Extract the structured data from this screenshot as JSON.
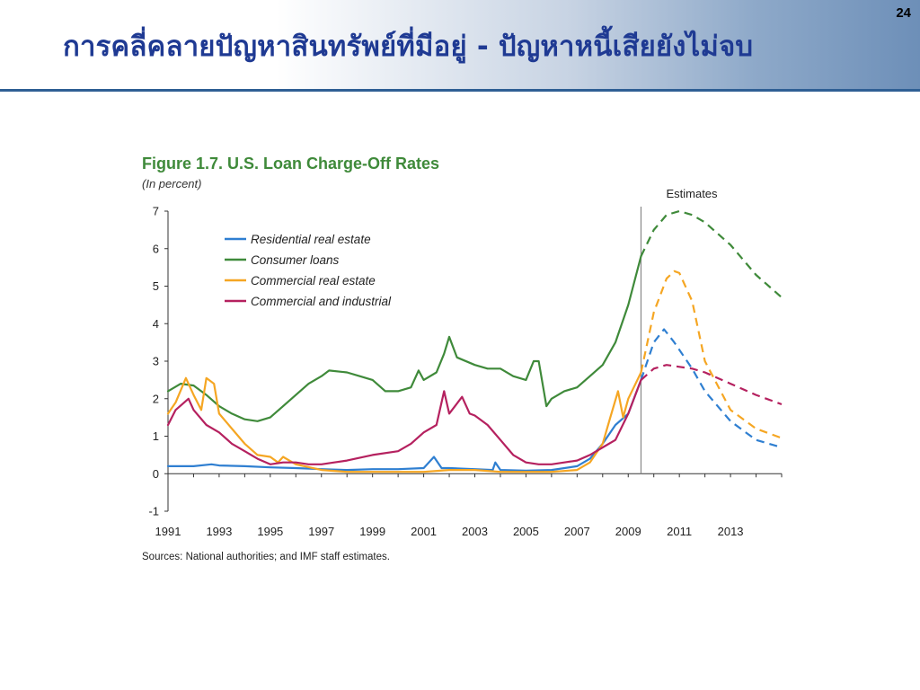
{
  "slide": {
    "title": "การคลี่คลายปัญหาสินทรัพย์ที่มีอยู่ - ปัญหาหนี้เสียยังไม่จบ",
    "page_number": "24"
  },
  "figure": {
    "title": "Figure 1.7. U.S. Loan Charge-Off Rates",
    "subtitle": "(In percent)",
    "source": "Sources: National authorities; and IMF staff estimates.",
    "estimates_label": "Estimates"
  },
  "chart_data": {
    "type": "line",
    "title": "Figure 1.7. U.S. Loan Charge-Off Rates",
    "ylabel": "(In percent)",
    "xlim": [
      1991,
      2015
    ],
    "ylim": [
      -1,
      7
    ],
    "y_ticks": [
      "-1",
      "0",
      "1",
      "2",
      "3",
      "4",
      "5",
      "6",
      "7"
    ],
    "x_ticks": [
      "1991",
      "1993",
      "1995",
      "1997",
      "1999",
      "2001",
      "2003",
      "2005",
      "2007",
      "2009",
      "2011",
      "2013"
    ],
    "estimates_start": 2009.5,
    "legend_position": "top-left",
    "grid": false,
    "series": [
      {
        "name": "Residential real estate",
        "color": "#2f7fd1",
        "actual": [
          [
            1991,
            0.2
          ],
          [
            1992,
            0.2
          ],
          [
            1992.7,
            0.25
          ],
          [
            1993,
            0.22
          ],
          [
            1994,
            0.2
          ],
          [
            1995,
            0.17
          ],
          [
            1996,
            0.15
          ],
          [
            1997,
            0.12
          ],
          [
            1998,
            0.1
          ],
          [
            1999,
            0.12
          ],
          [
            2000,
            0.12
          ],
          [
            2001,
            0.15
          ],
          [
            2001.4,
            0.45
          ],
          [
            2001.7,
            0.15
          ],
          [
            2002,
            0.15
          ],
          [
            2003,
            0.12
          ],
          [
            2003.7,
            0.1
          ],
          [
            2003.8,
            0.3
          ],
          [
            2004,
            0.1
          ],
          [
            2005,
            0.08
          ],
          [
            2006,
            0.1
          ],
          [
            2007,
            0.2
          ],
          [
            2007.5,
            0.4
          ],
          [
            2008,
            0.8
          ],
          [
            2008.5,
            1.3
          ],
          [
            2009,
            1.6
          ],
          [
            2009.5,
            2.5
          ]
        ],
        "estimate": [
          [
            2009.5,
            2.5
          ],
          [
            2010,
            3.5
          ],
          [
            2010.4,
            3.85
          ],
          [
            2010.8,
            3.5
          ],
          [
            2011.5,
            2.8
          ],
          [
            2012,
            2.2
          ],
          [
            2013,
            1.4
          ],
          [
            2014,
            0.9
          ],
          [
            2015,
            0.7
          ]
        ]
      },
      {
        "name": "Consumer loans",
        "color": "#3f8a3a",
        "actual": [
          [
            1991,
            2.2
          ],
          [
            1991.5,
            2.4
          ],
          [
            1992,
            2.35
          ],
          [
            1992.5,
            2.1
          ],
          [
            1993,
            1.8
          ],
          [
            1993.5,
            1.6
          ],
          [
            1994,
            1.45
          ],
          [
            1994.5,
            1.4
          ],
          [
            1995,
            1.5
          ],
          [
            1995.5,
            1.8
          ],
          [
            1996,
            2.1
          ],
          [
            1996.5,
            2.4
          ],
          [
            1997,
            2.6
          ],
          [
            1997.3,
            2.75
          ],
          [
            1998,
            2.7
          ],
          [
            1998.5,
            2.6
          ],
          [
            1999,
            2.5
          ],
          [
            1999.5,
            2.2
          ],
          [
            2000,
            2.2
          ],
          [
            2000.5,
            2.3
          ],
          [
            2000.8,
            2.75
          ],
          [
            2001,
            2.5
          ],
          [
            2001.5,
            2.7
          ],
          [
            2001.8,
            3.2
          ],
          [
            2002,
            3.65
          ],
          [
            2002.3,
            3.1
          ],
          [
            2003,
            2.9
          ],
          [
            2003.5,
            2.8
          ],
          [
            2004,
            2.8
          ],
          [
            2004.5,
            2.6
          ],
          [
            2005,
            2.5
          ],
          [
            2005.3,
            3.0
          ],
          [
            2005.5,
            3.0
          ],
          [
            2005.8,
            1.8
          ],
          [
            2006,
            2.0
          ],
          [
            2006.5,
            2.2
          ],
          [
            2007,
            2.3
          ],
          [
            2007.5,
            2.6
          ],
          [
            2008,
            2.9
          ],
          [
            2008.5,
            3.5
          ],
          [
            2009,
            4.5
          ],
          [
            2009.5,
            5.8
          ]
        ],
        "estimate": [
          [
            2009.5,
            5.8
          ],
          [
            2010,
            6.5
          ],
          [
            2010.5,
            6.9
          ],
          [
            2011,
            7.0
          ],
          [
            2011.5,
            6.9
          ],
          [
            2012,
            6.7
          ],
          [
            2013,
            6.1
          ],
          [
            2014,
            5.3
          ],
          [
            2015,
            4.7
          ]
        ]
      },
      {
        "name": "Commercial real estate",
        "color": "#f5a623",
        "actual": [
          [
            1991,
            1.6
          ],
          [
            1991.3,
            1.9
          ],
          [
            1991.7,
            2.55
          ],
          [
            1992,
            2.1
          ],
          [
            1992.3,
            1.7
          ],
          [
            1992.5,
            2.55
          ],
          [
            1992.8,
            2.4
          ],
          [
            1993,
            1.6
          ],
          [
            1993.5,
            1.2
          ],
          [
            1994,
            0.8
          ],
          [
            1994.5,
            0.5
          ],
          [
            1995,
            0.45
          ],
          [
            1995.3,
            0.3
          ],
          [
            1995.5,
            0.45
          ],
          [
            1996,
            0.25
          ],
          [
            1997,
            0.1
          ],
          [
            1998,
            0.05
          ],
          [
            1999,
            0.05
          ],
          [
            2000,
            0.05
          ],
          [
            2001,
            0.05
          ],
          [
            2002,
            0.1
          ],
          [
            2003,
            0.1
          ],
          [
            2004,
            0.05
          ],
          [
            2005,
            0.05
          ],
          [
            2006,
            0.05
          ],
          [
            2007,
            0.1
          ],
          [
            2007.5,
            0.3
          ],
          [
            2008,
            0.8
          ],
          [
            2008.3,
            1.5
          ],
          [
            2008.6,
            2.2
          ],
          [
            2008.8,
            1.5
          ],
          [
            2009,
            2.0
          ],
          [
            2009.5,
            2.7
          ]
        ],
        "estimate": [
          [
            2009.5,
            2.7
          ],
          [
            2010,
            4.3
          ],
          [
            2010.5,
            5.2
          ],
          [
            2010.8,
            5.4
          ],
          [
            2011,
            5.35
          ],
          [
            2011.5,
            4.6
          ],
          [
            2012,
            3.0
          ],
          [
            2013,
            1.7
          ],
          [
            2014,
            1.2
          ],
          [
            2015,
            0.95
          ]
        ]
      },
      {
        "name": "Commercial and industrial",
        "color": "#b5215f",
        "actual": [
          [
            1991,
            1.3
          ],
          [
            1991.3,
            1.7
          ],
          [
            1991.8,
            2.0
          ],
          [
            1992,
            1.7
          ],
          [
            1992.5,
            1.3
          ],
          [
            1993,
            1.1
          ],
          [
            1993.5,
            0.8
          ],
          [
            1994,
            0.6
          ],
          [
            1994.5,
            0.4
          ],
          [
            1995,
            0.25
          ],
          [
            1995.5,
            0.3
          ],
          [
            1996,
            0.3
          ],
          [
            1996.5,
            0.25
          ],
          [
            1997,
            0.25
          ],
          [
            1997.5,
            0.3
          ],
          [
            1998,
            0.35
          ],
          [
            1999,
            0.5
          ],
          [
            2000,
            0.6
          ],
          [
            2000.5,
            0.8
          ],
          [
            2001,
            1.1
          ],
          [
            2001.5,
            1.3
          ],
          [
            2001.8,
            2.2
          ],
          [
            2002,
            1.6
          ],
          [
            2002.5,
            2.05
          ],
          [
            2002.8,
            1.6
          ],
          [
            2003,
            1.55
          ],
          [
            2003.5,
            1.3
          ],
          [
            2004,
            0.9
          ],
          [
            2004.5,
            0.5
          ],
          [
            2005,
            0.3
          ],
          [
            2005.5,
            0.25
          ],
          [
            2006,
            0.25
          ],
          [
            2006.5,
            0.3
          ],
          [
            2007,
            0.35
          ],
          [
            2007.5,
            0.5
          ],
          [
            2008,
            0.7
          ],
          [
            2008.5,
            0.9
          ],
          [
            2009,
            1.6
          ],
          [
            2009.5,
            2.5
          ]
        ],
        "estimate": [
          [
            2009.5,
            2.5
          ],
          [
            2010,
            2.8
          ],
          [
            2010.5,
            2.9
          ],
          [
            2011,
            2.85
          ],
          [
            2011.5,
            2.8
          ],
          [
            2012,
            2.7
          ],
          [
            2013,
            2.4
          ],
          [
            2014,
            2.1
          ],
          [
            2015,
            1.85
          ]
        ]
      }
    ]
  }
}
